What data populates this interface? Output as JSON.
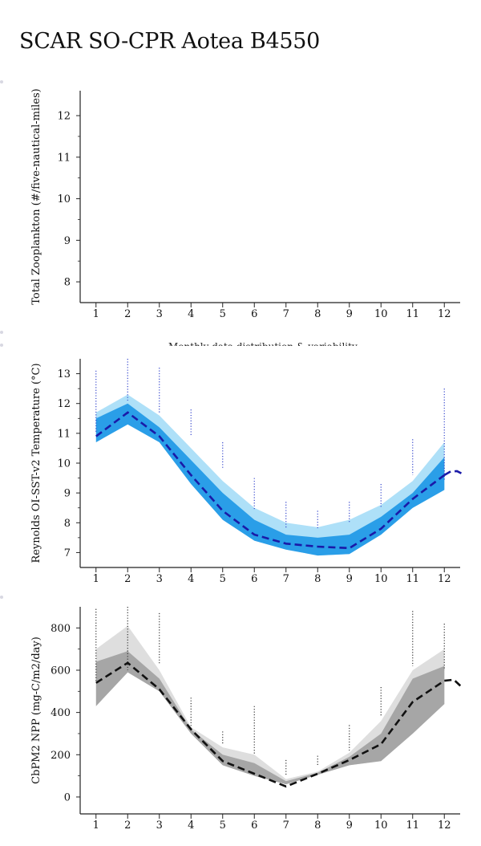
{
  "page": {
    "title": "SCAR SO-CPR Aotea B4550",
    "caption": "Monthly data distribution & variability"
  },
  "chart_data": [
    {
      "type": "scatter",
      "ylabel": "Total Zooplankton (#/five-nautical-miles)",
      "xlim": [
        0.5,
        12.5
      ],
      "ylim": [
        7.5,
        12.6
      ],
      "xticks": [
        1,
        2,
        3,
        4,
        5,
        6,
        7,
        8,
        9,
        10,
        11,
        12
      ],
      "yticks": [
        8,
        9,
        10,
        11,
        12
      ],
      "points": []
    },
    {
      "type": "area",
      "ylabel": "Reynolds OI-SST-v2 Temperature (°C)",
      "xlim": [
        0.5,
        12.5
      ],
      "ylim": [
        6.5,
        13.5
      ],
      "xticks": [
        1,
        2,
        3,
        4,
        5,
        6,
        7,
        8,
        9,
        10,
        11,
        12
      ],
      "yticks": [
        7,
        8,
        9,
        10,
        11,
        12,
        13
      ],
      "colors": {
        "outer": "#aee0f8",
        "inner": "#2a9ee8",
        "line": "#1a1aa8",
        "points": "#3344cc"
      },
      "x": [
        1,
        2,
        3,
        4,
        5,
        6,
        7,
        8,
        9,
        10,
        11,
        12
      ],
      "median": [
        10.9,
        11.7,
        10.9,
        9.6,
        8.4,
        7.6,
        7.3,
        7.2,
        7.15,
        7.8,
        8.8,
        9.6
      ],
      "band_outer_upper": [
        11.7,
        12.3,
        11.6,
        10.5,
        9.4,
        8.5,
        8.0,
        7.85,
        8.1,
        8.6,
        9.4,
        10.7
      ],
      "band_outer_lower": [
        10.7,
        11.3,
        10.7,
        9.3,
        8.1,
        7.4,
        7.1,
        6.9,
        6.95,
        7.6,
        8.5,
        9.1
      ],
      "band_inner_upper": [
        11.5,
        12.0,
        11.2,
        10.1,
        9.0,
        8.1,
        7.6,
        7.5,
        7.6,
        8.2,
        9.0,
        10.2
      ],
      "band_inner_lower": [
        10.7,
        11.3,
        10.7,
        9.3,
        8.1,
        7.4,
        7.1,
        6.9,
        6.95,
        7.6,
        8.5,
        9.1
      ],
      "extension": {
        "x": [
          12,
          12.2,
          12.4,
          12.55
        ],
        "y": [
          9.6,
          9.72,
          9.73,
          9.65
        ]
      },
      "observations": [
        {
          "x": 1,
          "min": 11.0,
          "max": 13.1
        },
        {
          "x": 2,
          "min": 12.1,
          "max": 13.5
        },
        {
          "x": 3,
          "min": 11.7,
          "max": 13.2
        },
        {
          "x": 4,
          "min": 10.9,
          "max": 11.8
        },
        {
          "x": 5,
          "min": 9.8,
          "max": 10.7
        },
        {
          "x": 6,
          "min": 8.4,
          "max": 9.5
        },
        {
          "x": 7,
          "min": 7.8,
          "max": 8.7
        },
        {
          "x": 8,
          "min": 7.8,
          "max": 8.4
        },
        {
          "x": 9,
          "min": 8.0,
          "max": 8.7
        },
        {
          "x": 10,
          "min": 8.5,
          "max": 9.3
        },
        {
          "x": 11,
          "min": 9.6,
          "max": 10.8
        },
        {
          "x": 12,
          "min": 9.4,
          "max": 12.5
        }
      ]
    },
    {
      "type": "area",
      "ylabel": "CbPM2 NPP (mg-C/m2/day)",
      "xlim": [
        0.5,
        12.5
      ],
      "ylim": [
        -80,
        900
      ],
      "xticks": [
        1,
        2,
        3,
        4,
        5,
        6,
        7,
        8,
        9,
        10,
        11,
        12
      ],
      "yticks": [
        0,
        200,
        400,
        600,
        800
      ],
      "colors": {
        "outer": "#dedede",
        "inner": "#a6a6a6",
        "line": "#111111",
        "points": "#333333"
      },
      "x": [
        1,
        2,
        3,
        4,
        5,
        6,
        7,
        8,
        9,
        10,
        11,
        12
      ],
      "median": [
        540,
        635,
        510,
        320,
        170,
        110,
        50,
        110,
        175,
        250,
        450,
        550
      ],
      "band_outer_upper": [
        700,
        810,
        600,
        330,
        235,
        200,
        85,
        120,
        210,
        360,
        600,
        700
      ],
      "band_outer_lower": [
        430,
        590,
        500,
        300,
        150,
        100,
        60,
        105,
        150,
        170,
        300,
        440
      ],
      "band_inner_upper": [
        640,
        690,
        560,
        320,
        200,
        160,
        75,
        115,
        190,
        300,
        560,
        620
      ],
      "band_inner_lower": [
        430,
        590,
        500,
        300,
        150,
        100,
        60,
        105,
        150,
        170,
        300,
        440
      ],
      "extension": {
        "x": [
          12,
          12.3,
          12.55
        ],
        "y": [
          550,
          555,
          520
        ]
      },
      "observations": [
        {
          "x": 1,
          "min": 550,
          "max": 890
        },
        {
          "x": 2,
          "min": 600,
          "max": 900
        },
        {
          "x": 3,
          "min": 630,
          "max": 870
        },
        {
          "x": 4,
          "min": 320,
          "max": 470
        },
        {
          "x": 5,
          "min": 250,
          "max": 310
        },
        {
          "x": 6,
          "min": 200,
          "max": 430
        },
        {
          "x": 7,
          "min": 100,
          "max": 175
        },
        {
          "x": 8,
          "min": 150,
          "max": 195
        },
        {
          "x": 9,
          "min": 220,
          "max": 340
        },
        {
          "x": 10,
          "min": 380,
          "max": 520
        },
        {
          "x": 11,
          "min": 620,
          "max": 880
        },
        {
          "x": 12,
          "min": 600,
          "max": 820
        }
      ]
    }
  ]
}
